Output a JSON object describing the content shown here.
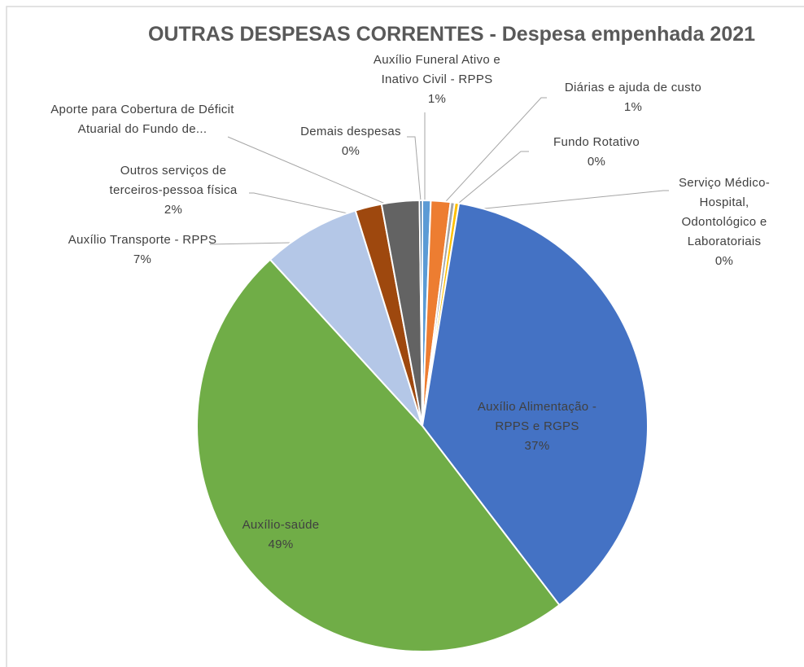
{
  "chart_data": {
    "type": "pie",
    "title": "OUTRAS DESPESAS CORRENTES - Despesa empenhada 2021",
    "categories": [
      "Auxílio Funeral Ativo e Inativo Civil - RPPS",
      "Diárias e ajuda de custo",
      "Fundo Rotativo",
      "Serviço Médico-Hospital, Odontológico e Laboratoriais",
      "Auxílio Alimentação - RPPS e RGPS",
      "Auxílio-saúde",
      "Auxílio Transporte - RPPS",
      "Outros serviços de terceiros-pessoa física",
      "Aporte para Cobertura de Déficit Atuarial do Fundo de...",
      "Demais despesas"
    ],
    "values": [
      0.6,
      1.4,
      0.3,
      0.3,
      37.0,
      48.6,
      7.0,
      1.9,
      2.7,
      0.2
    ],
    "value_labels": [
      "1%",
      "1%",
      "0%",
      "0%",
      "37%",
      "49%",
      "7%",
      "2%",
      null,
      "0%"
    ],
    "colors": [
      "#5b9bd5",
      "#ed7d31",
      "#a5a5a5",
      "#ffc000",
      "#4472c4",
      "#70ad47",
      "#b4c7e7",
      "#9e480e",
      "#636363",
      "#255e91"
    ]
  }
}
